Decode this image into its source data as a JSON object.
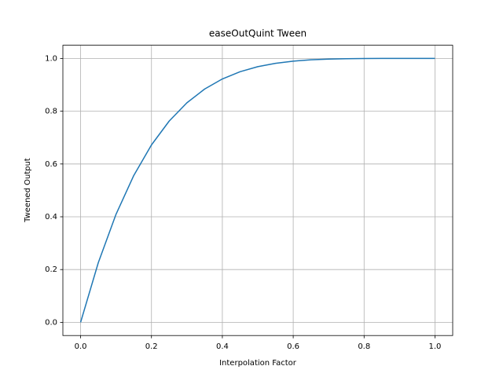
{
  "chart_data": {
    "type": "line",
    "title": "easeOutQuint Tween",
    "x_label": "Interpolation Factor",
    "y_label": "Tweened Output",
    "x": [
      0,
      0.05,
      0.1,
      0.15,
      0.2,
      0.25,
      0.3,
      0.35,
      0.4,
      0.45,
      0.5,
      0.55,
      0.6,
      0.65,
      0.7,
      0.75,
      0.8,
      0.85,
      0.9,
      0.95,
      1
    ],
    "series": [
      {
        "name": "easeOutQuint",
        "color": "#1f77b4",
        "values": [
          0,
          0.22622,
          0.40951,
          0.55629,
          0.67232,
          0.7627,
          0.83193,
          0.88397,
          0.92224,
          0.94967,
          0.96875,
          0.98155,
          0.98976,
          0.99475,
          0.99757,
          0.99902,
          0.99968,
          0.99992,
          0.99999,
          1,
          1
        ]
      }
    ],
    "xlim": [
      -0.05,
      1.05
    ],
    "ylim": [
      -0.05,
      1.05
    ],
    "xticks": [
      {
        "value": 0,
        "label": "0.0"
      },
      0.2,
      0.4,
      0.6,
      0.8,
      {
        "value": 1,
        "label": "1.0"
      }
    ],
    "yticks": [
      {
        "value": 0,
        "label": "0.0"
      },
      0.2,
      0.4,
      0.6,
      0.8,
      {
        "value": 1,
        "label": "1.0"
      }
    ],
    "grid": true
  }
}
